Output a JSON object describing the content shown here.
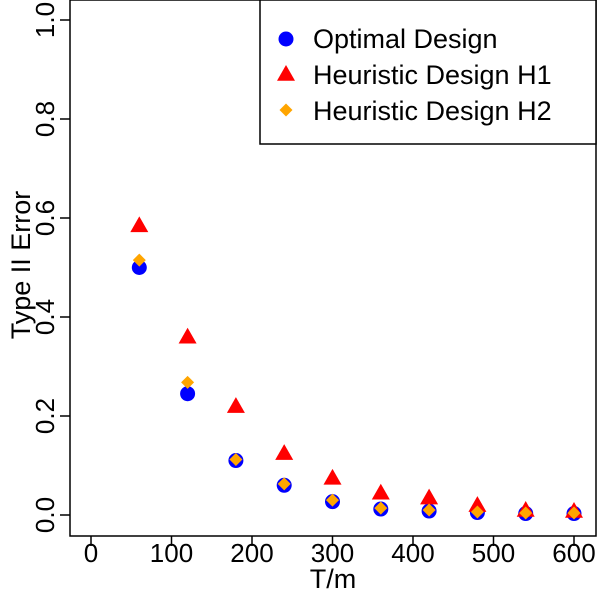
{
  "chart_data": {
    "type": "scatter",
    "title": "",
    "xlabel": "T/m",
    "ylabel": "Type II Error",
    "xlim": [
      0,
      600
    ],
    "ylim": [
      0,
      1
    ],
    "xticks": [
      "0",
      "100",
      "200",
      "300",
      "400",
      "500",
      "600"
    ],
    "yticks": [
      "0.0",
      "0.2",
      "0.4",
      "0.6",
      "0.8",
      "1.0"
    ],
    "x": [
      60,
      120,
      180,
      240,
      300,
      360,
      420,
      480,
      540,
      600
    ],
    "series": [
      {
        "name": "Optimal Design",
        "marker": "circle",
        "color": "#0000FF",
        "values": [
          0.5,
          0.245,
          0.11,
          0.06,
          0.027,
          0.012,
          0.008,
          0.005,
          0.003,
          0.003
        ]
      },
      {
        "name": "Heuristic Design H1",
        "marker": "triangle",
        "color": "#FF0000",
        "values": [
          0.585,
          0.36,
          0.22,
          0.125,
          0.075,
          0.045,
          0.035,
          0.02,
          0.01,
          0.008
        ]
      },
      {
        "name": "Heuristic Design H2",
        "marker": "diamond",
        "color": "#FFA500",
        "values": [
          0.515,
          0.268,
          0.112,
          0.063,
          0.03,
          0.014,
          0.01,
          0.006,
          0.004,
          0.004
        ]
      }
    ],
    "legend_position": "top-right",
    "grid": false
  }
}
